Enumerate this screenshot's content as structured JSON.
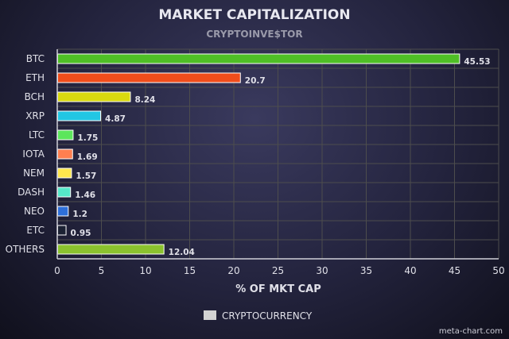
{
  "chart_data": {
    "type": "bar",
    "orientation": "horizontal",
    "title": "MARKET CAPITALIZATION",
    "subtitle": "CRYPTOINVE$TOR",
    "xlabel": "% OF MKT CAP",
    "ylabel": "",
    "xlim": [
      0,
      50
    ],
    "x_ticks": [
      0,
      5,
      10,
      15,
      20,
      25,
      30,
      35,
      40,
      45,
      50
    ],
    "grid": true,
    "legend_position": "bottom",
    "series": [
      {
        "name": "CRYPTOCURRENCY",
        "legend_color": "#d3d3d3",
        "categories": [
          "BTC",
          "ETH",
          "BCH",
          "XRP",
          "LTC",
          "IOTA",
          "NEM",
          "DASH",
          "NEO",
          "ETC",
          "OTHERS"
        ],
        "values": [
          45.53,
          20.7,
          8.24,
          4.87,
          1.75,
          1.69,
          1.57,
          1.46,
          1.2,
          0.95,
          12.04
        ],
        "value_labels": [
          "45.53",
          "20.7",
          "8.24",
          "4.87",
          "1.75",
          "1.69",
          "1.57",
          "1.46",
          "1.2",
          "0.95",
          "12.04"
        ],
        "colors": [
          "#4fbf26",
          "#f04d1b",
          "#d9d90f",
          "#22c6e3",
          "#5ce65c",
          "#ff7f50",
          "#ffe64d",
          "#55e8c8",
          "#2e6fd9",
          "#1c2233",
          "#8bc22e"
        ]
      }
    ]
  },
  "colors": {
    "title": "#e8e8f0",
    "subtitle": "#9a9aaa",
    "axis_text": "#e0e0e8",
    "grid": "#4d4d4d",
    "axis_line": "#cfcfd8",
    "bar_border": "#ffffff"
  },
  "credit": "meta-chart.com"
}
